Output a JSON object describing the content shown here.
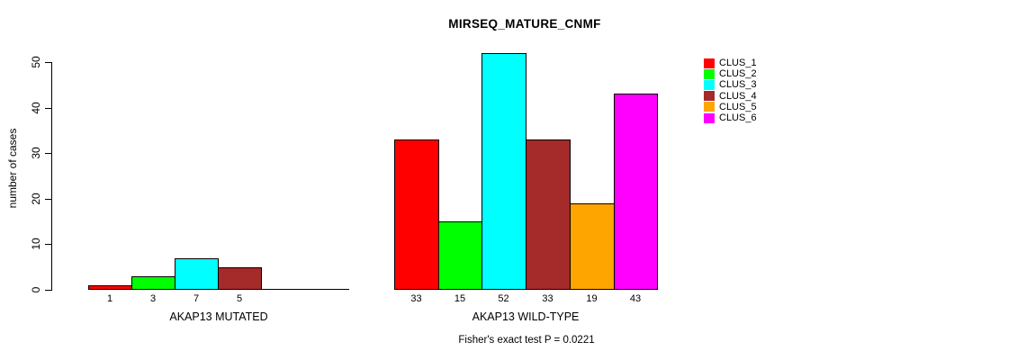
{
  "chart_data": {
    "type": "bar",
    "title": "MIRSEQ_MATURE_CNMF",
    "ylabel": "number of cases",
    "ylim": [
      0,
      52
    ],
    "yticks": [
      0,
      10,
      20,
      30,
      40,
      50
    ],
    "grid": false,
    "legend_position": "right",
    "clusters": [
      {
        "name": "CLUS_1",
        "color": "#ff0000"
      },
      {
        "name": "CLUS_2",
        "color": "#00ff00"
      },
      {
        "name": "CLUS_3",
        "color": "#00ffff"
      },
      {
        "name": "CLUS_4",
        "color": "#a52a2a"
      },
      {
        "name": "CLUS_5",
        "color": "#ffa500"
      },
      {
        "name": "CLUS_6",
        "color": "#ff00ff"
      }
    ],
    "groups": [
      {
        "label": "AKAP13 MUTATED",
        "values": [
          1,
          3,
          7,
          5,
          0,
          0
        ],
        "bar_labels": [
          "1",
          "3",
          "7",
          "5",
          "",
          ""
        ]
      },
      {
        "label": "AKAP13 WILD-TYPE",
        "values": [
          33,
          15,
          52,
          33,
          19,
          43
        ],
        "bar_labels": [
          "33",
          "15",
          "52",
          "33",
          "19",
          "43"
        ]
      }
    ],
    "footnote": "Fisher's exact test P = 0.0221"
  }
}
